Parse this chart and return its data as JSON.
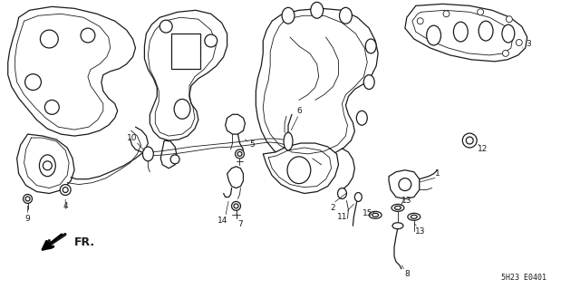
{
  "background_color": "#ffffff",
  "figure_width": 6.4,
  "figure_height": 3.19,
  "dpi": 100,
  "line_color": "#1a1a1a",
  "footer_text": "5H23 E0401",
  "arrow_label": "FR.",
  "label_fontsize": 6.5,
  "footer_fontsize": 6.0
}
